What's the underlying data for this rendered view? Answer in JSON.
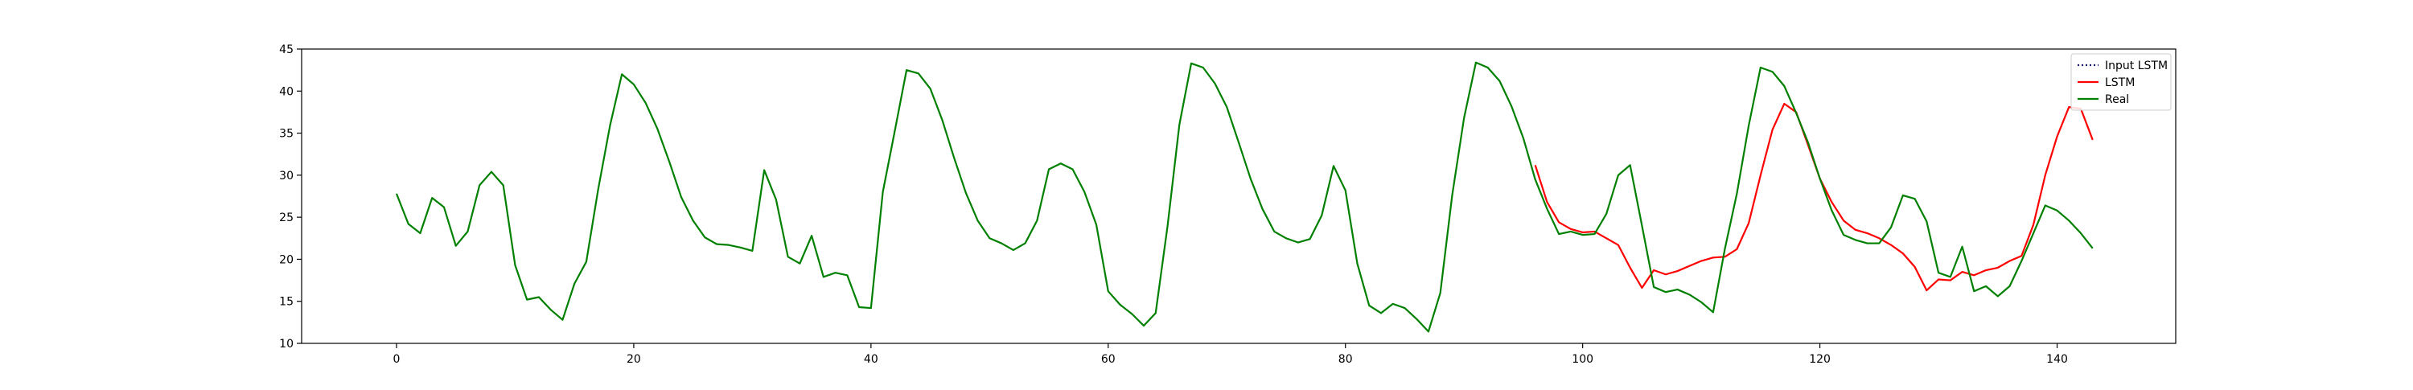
{
  "chart_data": {
    "type": "line",
    "title": "",
    "xlabel": "",
    "ylabel": "",
    "xlim": [
      -8,
      150
    ],
    "ylim": [
      10,
      45
    ],
    "xticks": [
      0,
      20,
      40,
      60,
      80,
      100,
      120,
      140
    ],
    "yticks": [
      10,
      15,
      20,
      25,
      30,
      35,
      40,
      45
    ],
    "grid": false,
    "legend_position": "top-right",
    "series": [
      {
        "name": "Input LSTM",
        "color": "#191970",
        "style": "dotted",
        "x": [],
        "values": []
      },
      {
        "name": "LSTM",
        "color": "#ff0000",
        "style": "solid",
        "x": [
          96,
          97,
          98,
          99,
          100,
          101,
          102,
          103,
          104,
          105,
          106,
          107,
          108,
          109,
          110,
          111,
          112,
          113,
          114,
          115,
          116,
          117,
          118,
          119,
          120,
          121,
          122,
          123,
          124,
          125,
          126,
          127,
          128,
          129,
          130,
          131,
          132,
          133,
          134,
          135,
          136,
          137,
          138,
          139,
          140,
          141,
          142,
          143
        ],
        "values": [
          31.2,
          26.8,
          24.4,
          23.6,
          23.2,
          23.3,
          22.5,
          21.7,
          19.0,
          16.6,
          18.7,
          18.2,
          18.6,
          19.2,
          19.8,
          20.2,
          20.3,
          21.2,
          24.3,
          30.0,
          35.4,
          38.5,
          37.5,
          33.6,
          29.6,
          26.8,
          24.6,
          23.5,
          23.1,
          22.5,
          21.7,
          20.7,
          19.1,
          16.3,
          17.6,
          17.5,
          18.5,
          18.1,
          18.7,
          19.0,
          19.8,
          20.4,
          24.1,
          30.0,
          34.6,
          38.1,
          37.9,
          34.2
        ]
      },
      {
        "name": "Real",
        "color": "#008000",
        "style": "solid",
        "x": [
          0,
          1,
          2,
          3,
          4,
          5,
          6,
          7,
          8,
          9,
          10,
          11,
          12,
          13,
          14,
          15,
          16,
          17,
          18,
          19,
          20,
          21,
          22,
          23,
          24,
          25,
          26,
          27,
          28,
          29,
          30,
          31,
          32,
          33,
          34,
          35,
          36,
          37,
          38,
          39,
          40,
          41,
          42,
          43,
          44,
          45,
          46,
          47,
          48,
          49,
          50,
          51,
          52,
          53,
          54,
          55,
          56,
          57,
          58,
          59,
          60,
          61,
          62,
          63,
          64,
          65,
          66,
          67,
          68,
          69,
          70,
          71,
          72,
          73,
          74,
          75,
          76,
          77,
          78,
          79,
          80,
          81,
          82,
          83,
          84,
          85,
          86,
          87,
          88,
          89,
          90,
          91,
          92,
          93,
          94,
          95,
          96,
          97,
          98,
          99,
          100,
          101,
          102,
          103,
          104,
          105,
          106,
          107,
          108,
          109,
          110,
          111,
          112,
          113,
          114,
          115,
          116,
          117,
          118,
          119,
          120,
          121,
          122,
          123,
          124,
          125,
          126,
          127,
          128,
          129,
          130,
          131,
          132,
          133,
          134,
          135,
          136,
          137,
          138,
          139,
          140,
          141,
          142,
          143
        ],
        "values": [
          27.8,
          24.2,
          23.1,
          27.3,
          26.2,
          21.6,
          23.3,
          28.8,
          30.4,
          28.8,
          19.3,
          15.2,
          15.5,
          14.0,
          12.8,
          17.1,
          19.7,
          28.3,
          35.9,
          42.0,
          40.8,
          38.6,
          35.5,
          31.6,
          27.4,
          24.6,
          22.6,
          21.8,
          21.7,
          21.4,
          21.0,
          30.6,
          27.1,
          20.3,
          19.5,
          22.8,
          17.9,
          18.4,
          18.1,
          14.3,
          14.2,
          28.0,
          35.2,
          42.5,
          42.1,
          40.3,
          36.6,
          32.1,
          27.9,
          24.6,
          22.5,
          21.9,
          21.1,
          21.9,
          24.6,
          30.7,
          31.4,
          30.7,
          28.0,
          24.1,
          16.2,
          14.6,
          13.5,
          12.1,
          13.6,
          23.9,
          36.0,
          43.3,
          42.8,
          40.9,
          38.1,
          33.9,
          29.6,
          26.0,
          23.3,
          22.5,
          22.0,
          22.4,
          25.2,
          31.1,
          28.2,
          19.5,
          14.5,
          13.6,
          14.7,
          14.2,
          12.9,
          11.4,
          16.0,
          27.6,
          36.8,
          43.4,
          42.8,
          41.2,
          38.2,
          34.4,
          29.5,
          26.0,
          23.0,
          23.3,
          22.9,
          23.0,
          25.4,
          30.0,
          31.2,
          24.0,
          16.7,
          16.1,
          16.4,
          15.8,
          14.9,
          13.7,
          21.3,
          27.8,
          35.9,
          42.8,
          42.3,
          40.6,
          37.4,
          33.9,
          29.6,
          25.8,
          22.9,
          22.3,
          21.9,
          21.9,
          23.8,
          27.6,
          27.2,
          24.5,
          18.4,
          17.9,
          21.5,
          16.2,
          16.8,
          15.6,
          16.8,
          19.8,
          23.1,
          26.4,
          25.8,
          24.6,
          23.1,
          21.3
        ]
      }
    ]
  }
}
